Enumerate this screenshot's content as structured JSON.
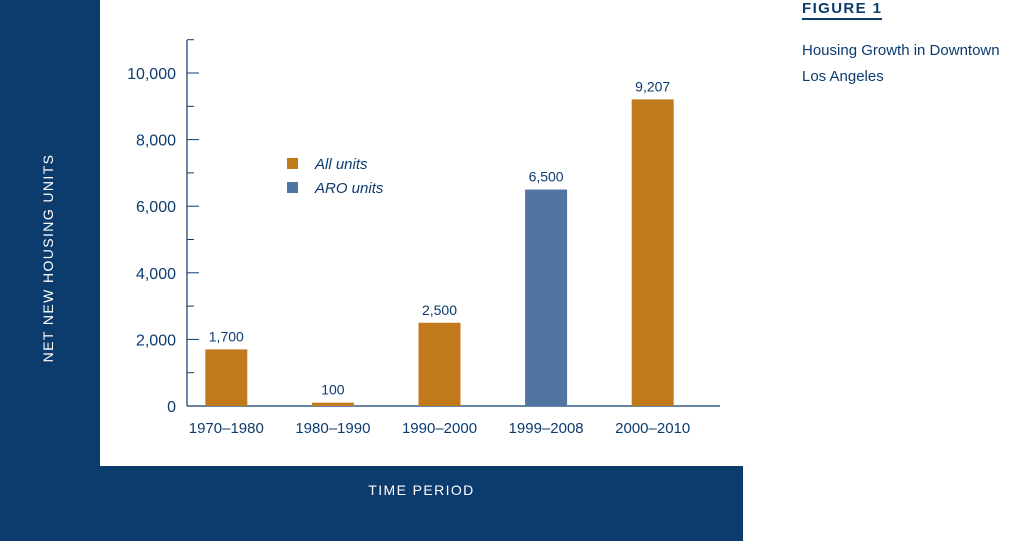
{
  "figure": {
    "number": "FIGURE 1",
    "title": "Housing Growth in Downtown Los Angeles"
  },
  "colors": {
    "frame": "#0c3b6e",
    "all_units": "#c07a1c",
    "aro_units": "#5274a2"
  },
  "chart_data": {
    "type": "bar",
    "title": "Housing Growth in Downtown Los Angeles",
    "xlabel": "TIME PERIOD",
    "ylabel": "NET NEW HOUSING UNITS",
    "ylim": [
      0,
      11000
    ],
    "yticks": [
      0,
      2000,
      4000,
      6000,
      8000,
      10000
    ],
    "ytick_labels": [
      "0",
      "2,000",
      "4,000",
      "6,000",
      "8,000",
      "10,000"
    ],
    "categories": [
      "1970–1980",
      "1980–1990",
      "1990–2000",
      "1999–2008",
      "2000–2010"
    ],
    "values": [
      1700,
      100,
      2500,
      6500,
      9207
    ],
    "value_labels": [
      "1,700",
      "100",
      "2,500",
      "6,500",
      "9,207"
    ],
    "series_of_bar": [
      "All units",
      "All units",
      "All units",
      "ARO units",
      "All units"
    ],
    "legend": [
      {
        "name": "All units",
        "color": "#c07a1c"
      },
      {
        "name": "ARO units",
        "color": "#5274a2"
      }
    ],
    "legend_position": "upper-left",
    "grid": false
  }
}
